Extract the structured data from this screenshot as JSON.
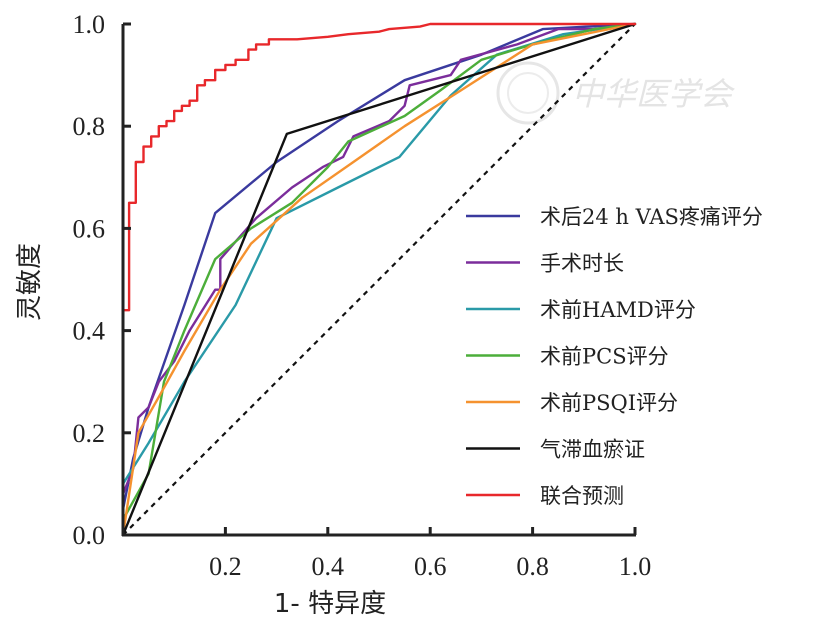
{
  "chart_data": {
    "type": "line",
    "title": "",
    "xlabel": "1- 特异度",
    "ylabel": "灵敏度",
    "xlim": [
      0,
      1
    ],
    "ylim": [
      0,
      1
    ],
    "xticks": [
      0.2,
      0.4,
      0.6,
      0.8,
      1.0
    ],
    "xtick_labels": [
      "0.2",
      "0.4",
      "0.6",
      "0.8",
      "1.0"
    ],
    "yticks": [
      0.0,
      0.2,
      0.4,
      0.6,
      0.8,
      1.0
    ],
    "ytick_labels": [
      "0.0",
      "0.2",
      "0.4",
      "0.6",
      "0.8",
      "1.0"
    ],
    "grid": false,
    "legend_position": "right-middle",
    "reference_line": {
      "name": "diagonal",
      "style": "dashed",
      "color": "#111111",
      "points": [
        [
          0,
          0
        ],
        [
          1,
          1
        ]
      ]
    },
    "watermark": "中华医学会",
    "series": [
      {
        "name": "术后24 h VAS疼痛评分",
        "color": "#3a3a9e",
        "points": [
          [
            0,
            0.05
          ],
          [
            0.02,
            0.15
          ],
          [
            0.05,
            0.25
          ],
          [
            0.12,
            0.45
          ],
          [
            0.18,
            0.63
          ],
          [
            0.3,
            0.73
          ],
          [
            0.42,
            0.81
          ],
          [
            0.55,
            0.89
          ],
          [
            0.7,
            0.94
          ],
          [
            0.82,
            0.99
          ],
          [
            1,
            1
          ]
        ]
      },
      {
        "name": "手术时长",
        "color": "#7b2d9b",
        "points": [
          [
            0,
            0.08
          ],
          [
            0.02,
            0.13
          ],
          [
            0.03,
            0.23
          ],
          [
            0.05,
            0.25
          ],
          [
            0.07,
            0.3
          ],
          [
            0.1,
            0.34
          ],
          [
            0.13,
            0.4
          ],
          [
            0.18,
            0.48
          ],
          [
            0.19,
            0.48
          ],
          [
            0.19,
            0.54
          ],
          [
            0.26,
            0.62
          ],
          [
            0.33,
            0.68
          ],
          [
            0.39,
            0.72
          ],
          [
            0.43,
            0.74
          ],
          [
            0.45,
            0.78
          ],
          [
            0.52,
            0.81
          ],
          [
            0.55,
            0.84
          ],
          [
            0.56,
            0.88
          ],
          [
            0.64,
            0.9
          ],
          [
            0.66,
            0.93
          ],
          [
            0.77,
            0.96
          ],
          [
            0.85,
            0.99
          ],
          [
            0.92,
            0.99
          ],
          [
            1,
            1
          ]
        ]
      },
      {
        "name": "术前HAMD评分",
        "color": "#2a9aa8",
        "points": [
          [
            0,
            0.1
          ],
          [
            0.05,
            0.18
          ],
          [
            0.12,
            0.3
          ],
          [
            0.22,
            0.45
          ],
          [
            0.3,
            0.62
          ],
          [
            0.42,
            0.68
          ],
          [
            0.54,
            0.74
          ],
          [
            0.64,
            0.86
          ],
          [
            0.73,
            0.94
          ],
          [
            0.86,
            0.98
          ],
          [
            1,
            1
          ]
        ]
      },
      {
        "name": "术前PCS评分",
        "color": "#4cae3a",
        "points": [
          [
            0,
            0.03
          ],
          [
            0.05,
            0.12
          ],
          [
            0.08,
            0.3
          ],
          [
            0.12,
            0.4
          ],
          [
            0.18,
            0.54
          ],
          [
            0.25,
            0.6
          ],
          [
            0.33,
            0.65
          ],
          [
            0.4,
            0.72
          ],
          [
            0.44,
            0.77
          ],
          [
            0.55,
            0.82
          ],
          [
            0.62,
            0.87
          ],
          [
            0.7,
            0.93
          ],
          [
            0.8,
            0.96
          ],
          [
            0.92,
            0.99
          ],
          [
            1,
            1
          ]
        ]
      },
      {
        "name": "术前PSQI评分",
        "color": "#f5922f",
        "points": [
          [
            0,
            0
          ],
          [
            0.03,
            0.2
          ],
          [
            0.07,
            0.27
          ],
          [
            0.12,
            0.36
          ],
          [
            0.19,
            0.48
          ],
          [
            0.25,
            0.57
          ],
          [
            0.35,
            0.66
          ],
          [
            0.45,
            0.73
          ],
          [
            0.55,
            0.8
          ],
          [
            0.66,
            0.87
          ],
          [
            0.8,
            0.96
          ],
          [
            0.9,
            0.98
          ],
          [
            1,
            1
          ]
        ]
      },
      {
        "name": "气滞血瘀证",
        "color": "#111111",
        "points": [
          [
            0,
            0
          ],
          [
            0.32,
            0.785
          ],
          [
            1,
            1
          ]
        ]
      },
      {
        "name": "联合预测",
        "color": "#e8282b",
        "step": true,
        "points": [
          [
            0,
            0
          ],
          [
            0,
            0.44
          ],
          [
            0.012,
            0.44
          ],
          [
            0.012,
            0.65
          ],
          [
            0.025,
            0.65
          ],
          [
            0.025,
            0.73
          ],
          [
            0.04,
            0.73
          ],
          [
            0.04,
            0.76
          ],
          [
            0.055,
            0.76
          ],
          [
            0.055,
            0.78
          ],
          [
            0.07,
            0.78
          ],
          [
            0.07,
            0.8
          ],
          [
            0.085,
            0.8
          ],
          [
            0.085,
            0.81
          ],
          [
            0.1,
            0.81
          ],
          [
            0.1,
            0.83
          ],
          [
            0.115,
            0.83
          ],
          [
            0.115,
            0.84
          ],
          [
            0.13,
            0.84
          ],
          [
            0.13,
            0.85
          ],
          [
            0.145,
            0.85
          ],
          [
            0.145,
            0.88
          ],
          [
            0.16,
            0.88
          ],
          [
            0.16,
            0.89
          ],
          [
            0.18,
            0.89
          ],
          [
            0.18,
            0.91
          ],
          [
            0.2,
            0.91
          ],
          [
            0.2,
            0.92
          ],
          [
            0.22,
            0.92
          ],
          [
            0.22,
            0.93
          ],
          [
            0.245,
            0.93
          ],
          [
            0.245,
            0.95
          ],
          [
            0.26,
            0.95
          ],
          [
            0.26,
            0.96
          ],
          [
            0.285,
            0.96
          ],
          [
            0.285,
            0.97
          ],
          [
            0.34,
            0.97
          ],
          [
            0.4,
            0.975
          ],
          [
            0.44,
            0.98
          ],
          [
            0.5,
            0.985
          ],
          [
            0.52,
            0.99
          ],
          [
            0.58,
            0.995
          ],
          [
            0.6,
            1.0
          ],
          [
            1,
            1
          ]
        ]
      }
    ]
  }
}
